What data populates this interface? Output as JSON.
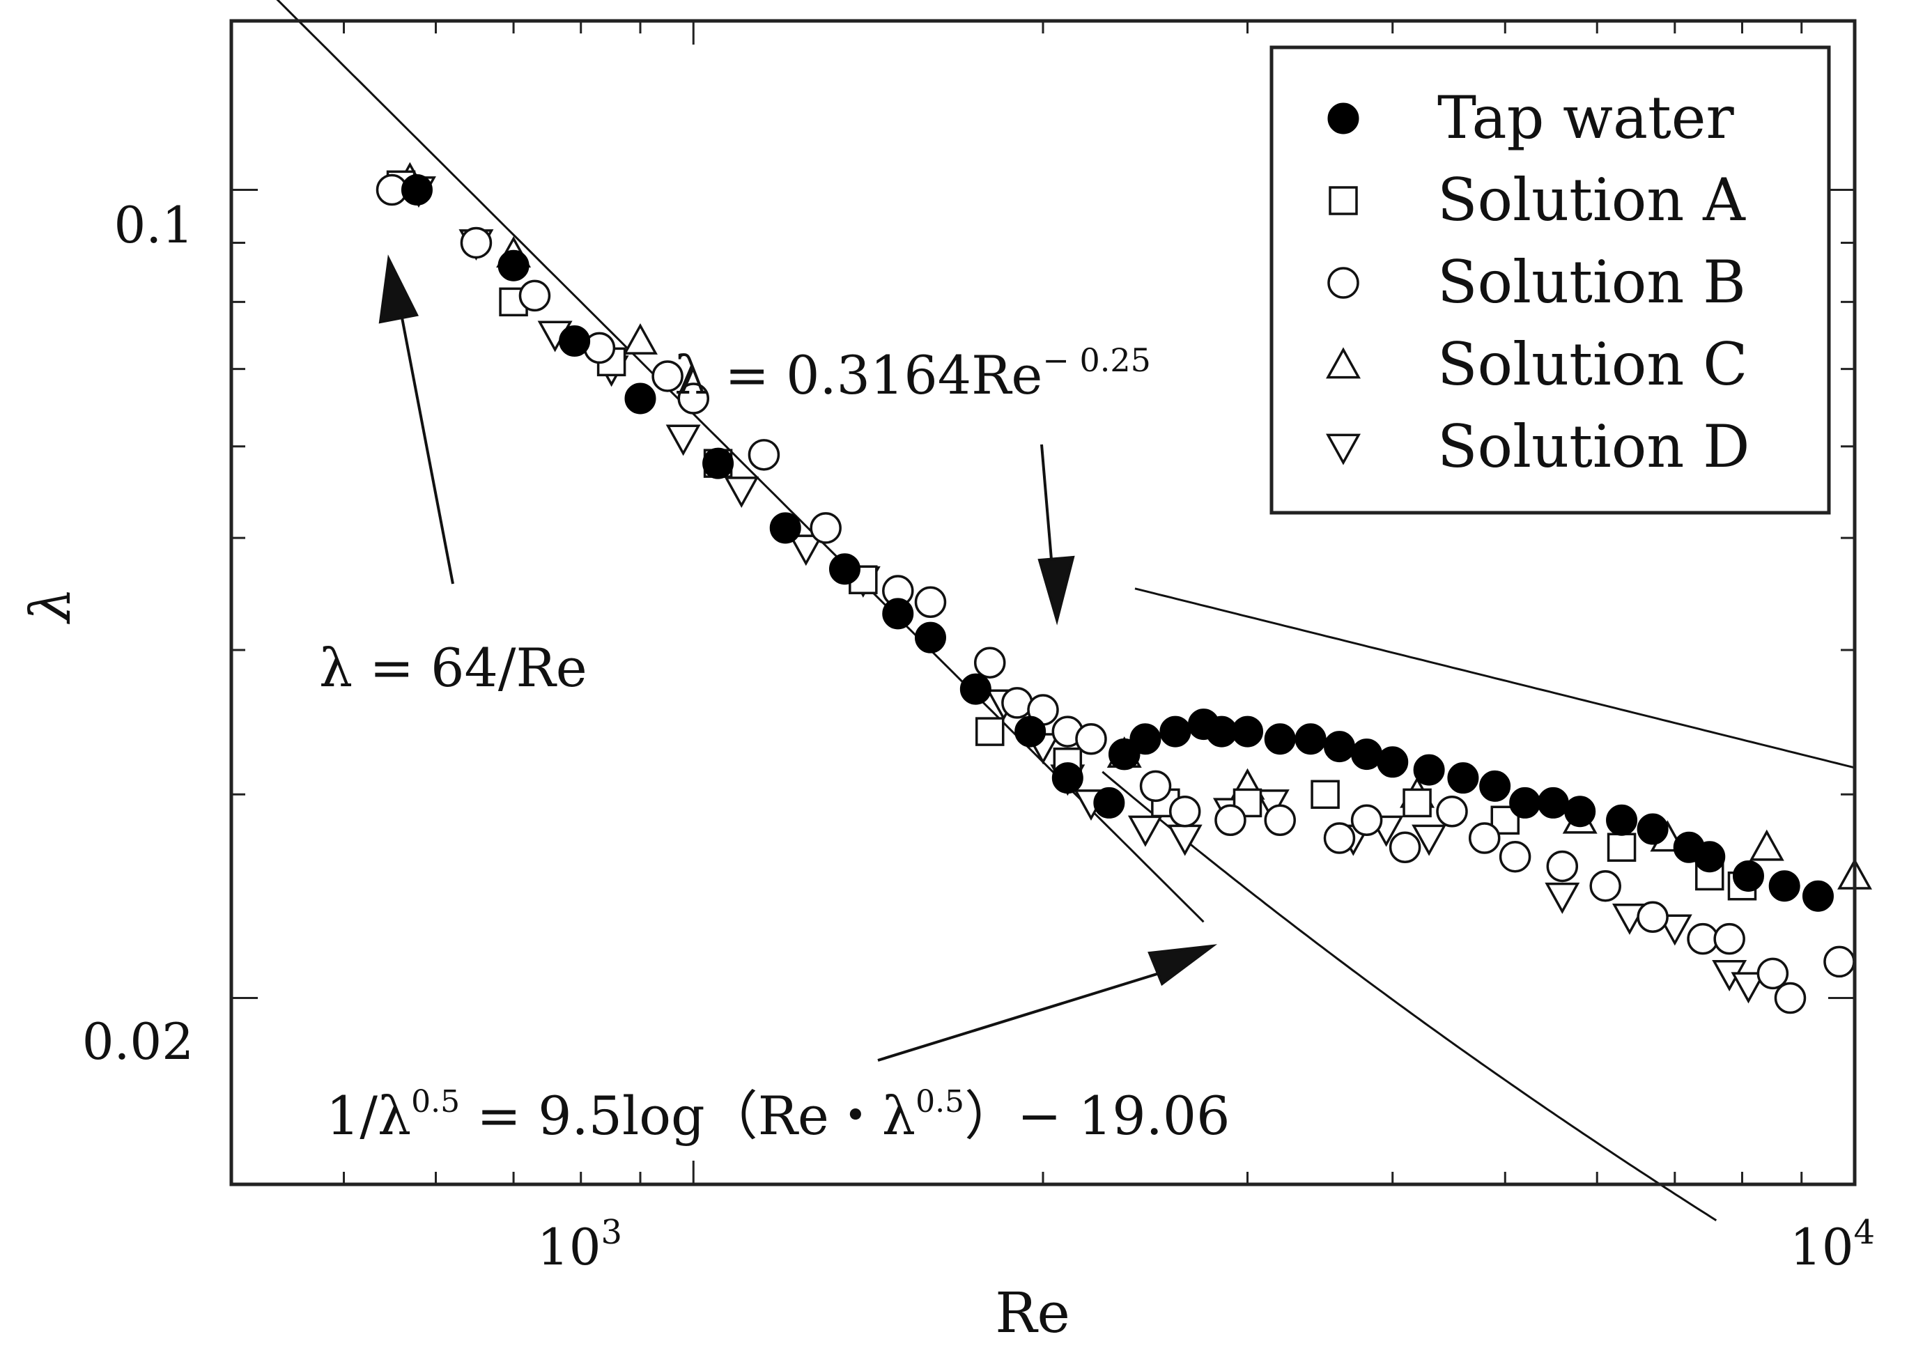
{
  "chart_data": {
    "type": "scatter",
    "x_scale": "log",
    "y_scale": "log",
    "xlim": [
      400,
      10000
    ],
    "ylim": [
      0.0138,
      0.14
    ],
    "xlabel": "Re",
    "ylabel": "λ",
    "x_ticks": [
      {
        "value": 1000,
        "base": "10",
        "exp": "3"
      },
      {
        "value": 10000,
        "base": "10",
        "exp": "4"
      }
    ],
    "y_ticks": [
      {
        "value": 0.1,
        "label": "0.1"
      },
      {
        "value": 0.02,
        "label": "0.02"
      }
    ],
    "grid": false,
    "legend_position": "top-right",
    "series": [
      {
        "name": "Tap water",
        "marker": "filled-circle",
        "points": [
          [
            578,
            0.1
          ],
          [
            700,
            0.086
          ],
          [
            790,
            0.074
          ],
          [
            900,
            0.066
          ],
          [
            1050,
            0.058
          ],
          [
            1200,
            0.051
          ],
          [
            1350,
            0.047
          ],
          [
            1500,
            0.043
          ],
          [
            1600,
            0.041
          ],
          [
            1750,
            0.037
          ],
          [
            1950,
            0.034
          ],
          [
            2100,
            0.031
          ],
          [
            2280,
            0.0295
          ],
          [
            2350,
            0.0325
          ],
          [
            2450,
            0.0335
          ],
          [
            2600,
            0.034
          ],
          [
            2750,
            0.0345
          ],
          [
            2850,
            0.034
          ],
          [
            3000,
            0.034
          ],
          [
            3200,
            0.0335
          ],
          [
            3400,
            0.0335
          ],
          [
            3600,
            0.033
          ],
          [
            3800,
            0.0325
          ],
          [
            4000,
            0.032
          ],
          [
            4300,
            0.0315
          ],
          [
            4600,
            0.031
          ],
          [
            4900,
            0.0305
          ],
          [
            5200,
            0.0295
          ],
          [
            5500,
            0.0295
          ],
          [
            5800,
            0.029
          ],
          [
            6300,
            0.0285
          ],
          [
            6700,
            0.028
          ],
          [
            7200,
            0.027
          ],
          [
            7500,
            0.0265
          ],
          [
            8100,
            0.0255
          ],
          [
            8700,
            0.025
          ],
          [
            9300,
            0.0245
          ]
        ]
      },
      {
        "name": "Solution A",
        "marker": "open-square",
        "points": [
          [
            560,
            0.101
          ],
          [
            700,
            0.08
          ],
          [
            850,
            0.071
          ],
          [
            1050,
            0.058
          ],
          [
            1400,
            0.046
          ],
          [
            1800,
            0.034
          ],
          [
            2100,
            0.032
          ],
          [
            2550,
            0.0295
          ],
          [
            3000,
            0.0295
          ],
          [
            3500,
            0.03
          ],
          [
            4200,
            0.0295
          ],
          [
            5000,
            0.0285
          ],
          [
            6300,
            0.027
          ],
          [
            7500,
            0.0255
          ],
          [
            8000,
            0.025
          ]
        ]
      },
      {
        "name": "Solution B",
        "marker": "open-circle",
        "points": [
          [
            550,
            0.1
          ],
          [
            650,
            0.09
          ],
          [
            730,
            0.081
          ],
          [
            830,
            0.073
          ],
          [
            950,
            0.069
          ],
          [
            1000,
            0.066
          ],
          [
            1150,
            0.059
          ],
          [
            1300,
            0.051
          ],
          [
            1500,
            0.045
          ],
          [
            1600,
            0.044
          ],
          [
            1800,
            0.039
          ],
          [
            1900,
            0.036
          ],
          [
            2000,
            0.0355
          ],
          [
            2100,
            0.034
          ],
          [
            2200,
            0.0335
          ],
          [
            2350,
            0.0325
          ],
          [
            2500,
            0.0305
          ],
          [
            2650,
            0.029
          ],
          [
            2900,
            0.0285
          ],
          [
            3200,
            0.0285
          ],
          [
            3600,
            0.0275
          ],
          [
            3800,
            0.0285
          ],
          [
            4100,
            0.027
          ],
          [
            4500,
            0.029
          ],
          [
            4800,
            0.0275
          ],
          [
            5100,
            0.0265
          ],
          [
            5600,
            0.026
          ],
          [
            6100,
            0.025
          ],
          [
            6700,
            0.0235
          ],
          [
            7400,
            0.0225
          ],
          [
            7800,
            0.0225
          ],
          [
            8500,
            0.021
          ],
          [
            8800,
            0.02
          ],
          [
            9700,
            0.0215
          ]
        ]
      },
      {
        "name": "Solution C",
        "marker": "open-triangle-up",
        "points": [
          [
            570,
            0.102
          ],
          [
            700,
            0.088
          ],
          [
            900,
            0.074
          ],
          [
            2350,
            0.0325
          ],
          [
            3000,
            0.0305
          ],
          [
            4200,
            0.03
          ],
          [
            5800,
            0.0285
          ],
          [
            6900,
            0.0275
          ],
          [
            8400,
            0.027
          ],
          [
            10000,
            0.0255
          ]
        ]
      },
      {
        "name": "Solution D",
        "marker": "open-triangle-down",
        "points": [
          [
            580,
            0.1
          ],
          [
            650,
            0.09
          ],
          [
            760,
            0.075
          ],
          [
            850,
            0.07
          ],
          [
            980,
            0.061
          ],
          [
            1100,
            0.055
          ],
          [
            1250,
            0.049
          ],
          [
            1400,
            0.046
          ],
          [
            1850,
            0.036
          ],
          [
            2000,
            0.033
          ],
          [
            2100,
            0.031
          ],
          [
            2200,
            0.0295
          ],
          [
            2450,
            0.028
          ],
          [
            2650,
            0.0275
          ],
          [
            2900,
            0.029
          ],
          [
            3150,
            0.0295
          ],
          [
            3700,
            0.0275
          ],
          [
            3950,
            0.028
          ],
          [
            4300,
            0.0275
          ],
          [
            5600,
            0.0245
          ],
          [
            6400,
            0.0235
          ],
          [
            7000,
            0.023
          ],
          [
            7800,
            0.021
          ],
          [
            8100,
            0.0205
          ]
        ]
      }
    ],
    "reference_curves": [
      {
        "name": "laminar",
        "equation": "λ = 64/Re",
        "x_range": [
          400,
          2750
        ]
      },
      {
        "name": "blasius",
        "equation": "λ = 0.3164Re^-0.25",
        "x_range": [
          2400,
          10000
        ]
      },
      {
        "name": "third",
        "equation": "1/λ^0.5 = 9.5log(Re·λ^0.5) − 19.06",
        "x_range": [
          2250,
          7600
        ]
      }
    ],
    "annotations": {
      "laminar": {
        "text_main": "λ = 64/Re"
      },
      "blasius": {
        "text_main": "λ = 0.3164Re",
        "text_sup": "− 0.25"
      },
      "third": {
        "t1": "1/λ",
        "s1": "0.5",
        "t2": " = 9.5log（Re・λ",
        "s2": "0.5",
        "t3": "）− 19.06"
      }
    }
  }
}
